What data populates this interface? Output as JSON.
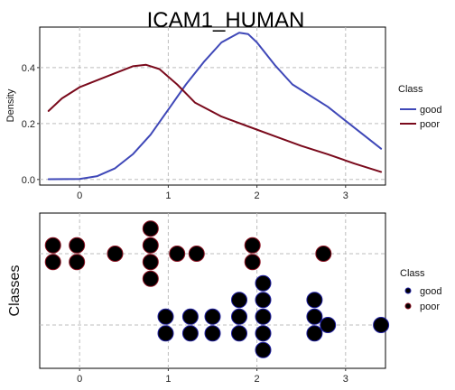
{
  "chart_data": [
    {
      "type": "line",
      "title": "ICAM1_HUMAN",
      "xlabel": "",
      "ylabel": "Density",
      "xlim": [
        -0.45,
        3.45
      ],
      "ylim": [
        -0.02,
        0.545
      ],
      "xticks": [
        0,
        1,
        2,
        3
      ],
      "yticks": [
        0.0,
        0.2,
        0.4
      ],
      "ytick_labels": [
        "0.0",
        "0.2",
        "0.4"
      ],
      "grid": true,
      "legend": {
        "title": "Class",
        "position": "right"
      },
      "series": [
        {
          "name": "good",
          "color": "#3F48B8",
          "x": [
            -0.35,
            0.0,
            0.2,
            0.4,
            0.6,
            0.8,
            1.0,
            1.2,
            1.4,
            1.6,
            1.8,
            1.9,
            2.0,
            2.2,
            2.4,
            2.6,
            2.8,
            3.0,
            3.2,
            3.4
          ],
          "y": [
            0.001,
            0.002,
            0.012,
            0.04,
            0.09,
            0.16,
            0.25,
            0.34,
            0.42,
            0.49,
            0.525,
            0.52,
            0.49,
            0.41,
            0.34,
            0.3,
            0.26,
            0.21,
            0.16,
            0.11
          ]
        },
        {
          "name": "poor",
          "color": "#7A0A1C",
          "x": [
            -0.35,
            -0.2,
            0.0,
            0.2,
            0.4,
            0.6,
            0.75,
            0.9,
            1.1,
            1.3,
            1.6,
            1.9,
            2.2,
            2.5,
            2.8,
            3.1,
            3.4
          ],
          "y": [
            0.245,
            0.29,
            0.33,
            0.355,
            0.38,
            0.405,
            0.41,
            0.395,
            0.34,
            0.275,
            0.225,
            0.19,
            0.155,
            0.12,
            0.09,
            0.057,
            0.027
          ]
        }
      ]
    },
    {
      "type": "scatter",
      "xlabel": "",
      "ylabel": "Classes",
      "xlim": [
        -0.45,
        3.45
      ],
      "xticks": [
        0,
        1,
        2,
        3
      ],
      "categories": [
        "good",
        "poor"
      ],
      "grid": true,
      "legend": {
        "title": "Class",
        "position": "right"
      },
      "series": [
        {
          "name": "good",
          "color": "#1E1EA0",
          "points": [
            [
              0.97,
              0.5
            ],
            [
              0.97,
              -0.5
            ],
            [
              1.25,
              0.5
            ],
            [
              1.25,
              -0.5
            ],
            [
              1.5,
              0.5
            ],
            [
              1.5,
              -0.5
            ],
            [
              1.8,
              1.5
            ],
            [
              1.8,
              0.5
            ],
            [
              1.8,
              -0.5
            ],
            [
              2.07,
              2.5
            ],
            [
              2.07,
              1.5
            ],
            [
              2.07,
              0.5
            ],
            [
              2.07,
              -0.5
            ],
            [
              2.07,
              -1.5
            ],
            [
              2.65,
              1.5
            ],
            [
              2.65,
              0.5
            ],
            [
              2.65,
              -0.5
            ],
            [
              2.8,
              0
            ],
            [
              3.4,
              0
            ]
          ]
        },
        {
          "name": "poor",
          "color": "#8A1020",
          "points": [
            [
              -0.3,
              0.5
            ],
            [
              -0.3,
              -0.5
            ],
            [
              -0.03,
              0.5
            ],
            [
              -0.03,
              -0.5
            ],
            [
              0.4,
              0
            ],
            [
              0.8,
              1.5
            ],
            [
              0.8,
              0.5
            ],
            [
              0.8,
              -0.5
            ],
            [
              0.8,
              -1.5
            ],
            [
              1.1,
              0
            ],
            [
              1.32,
              0
            ],
            [
              1.95,
              0.5
            ],
            [
              1.95,
              -0.5
            ],
            [
              2.75,
              0
            ]
          ]
        }
      ]
    }
  ]
}
